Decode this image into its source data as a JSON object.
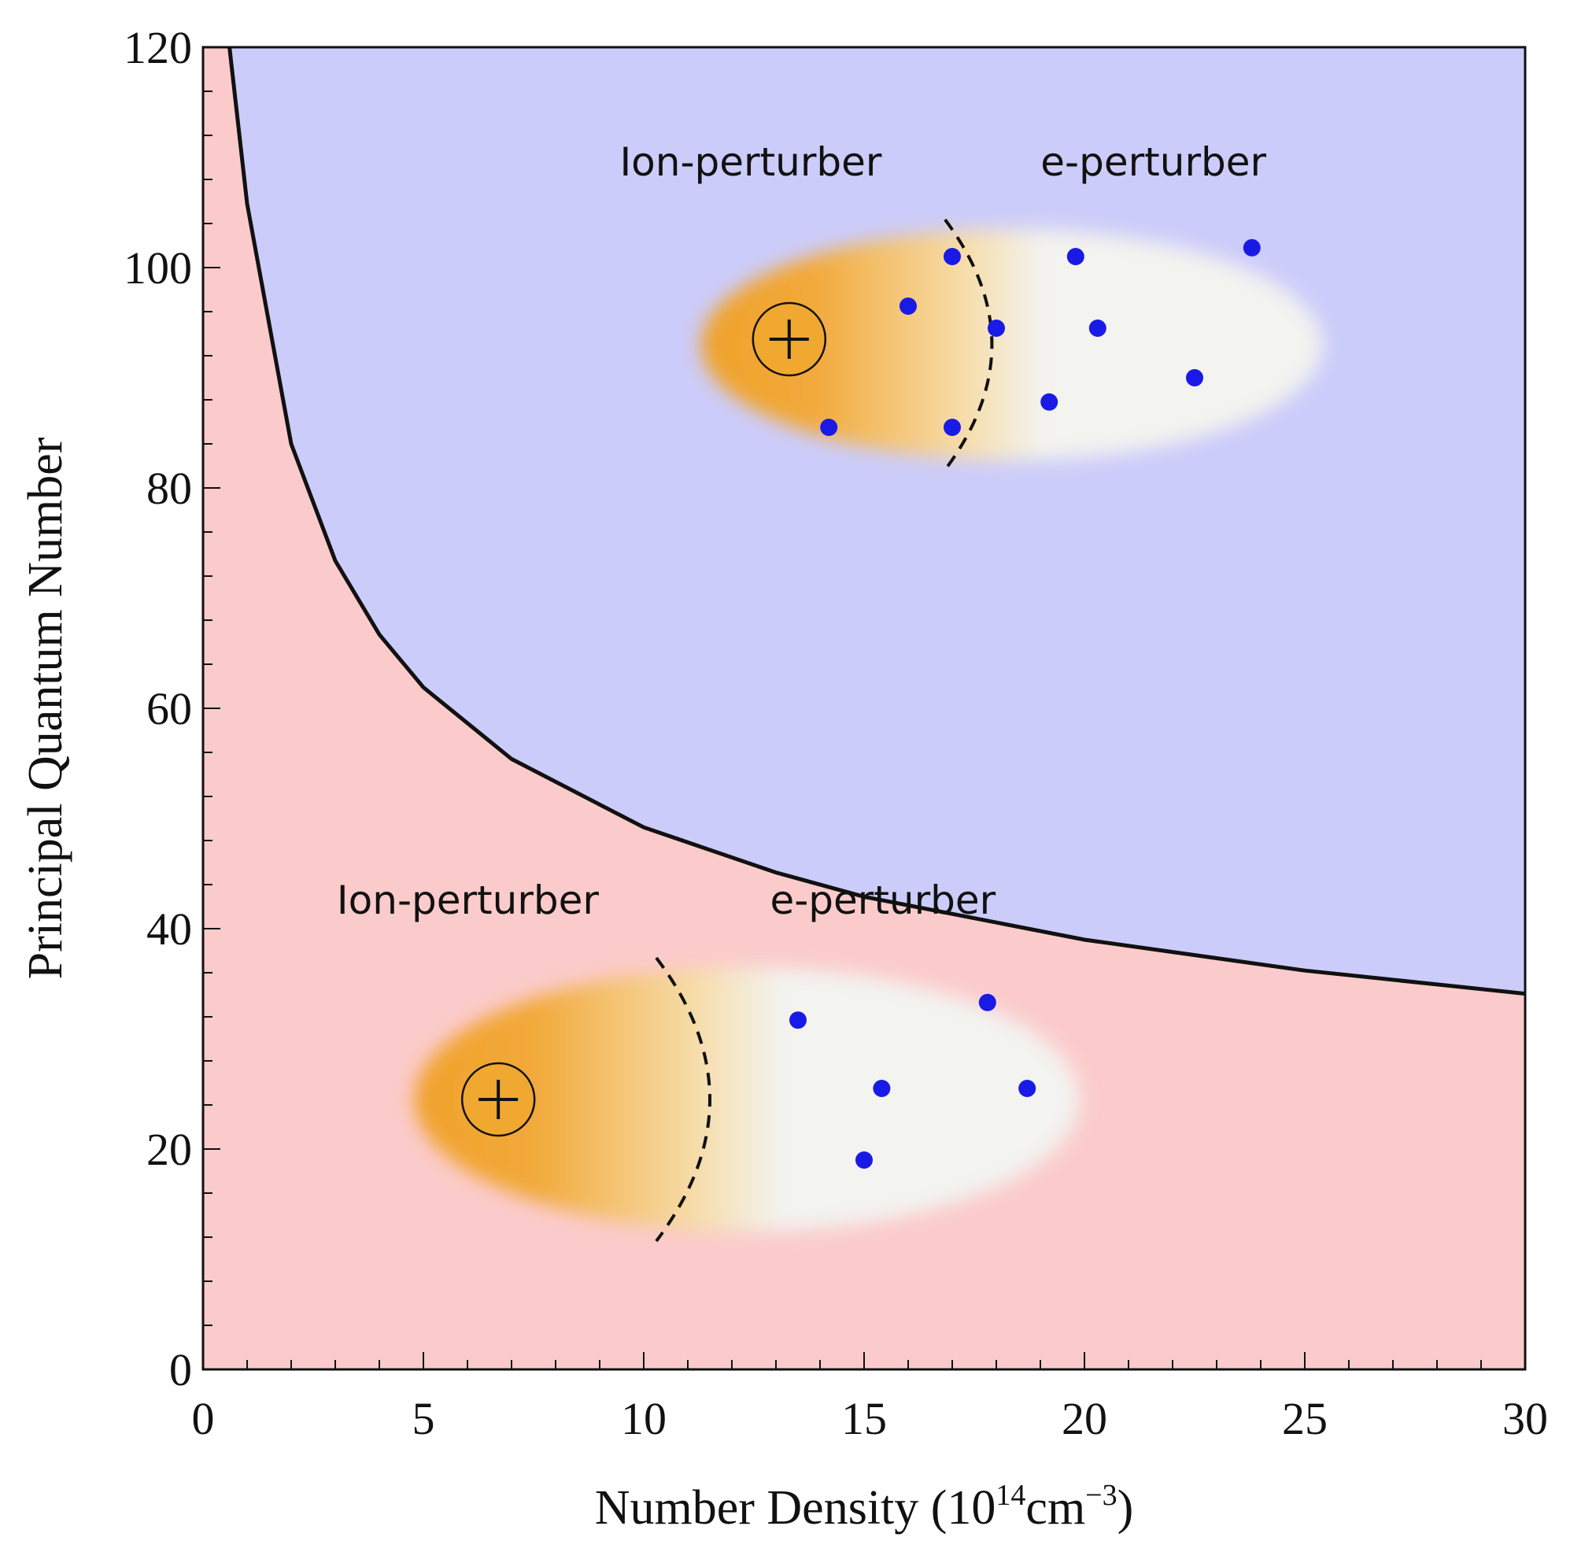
{
  "chart_data": {
    "type": "area",
    "title": "",
    "xlabel": "Number Density (10",
    "xlabel_sup": "14",
    "xlabel_unit": "cm",
    "xlabel_unit_sup": "−3",
    "xlabel_close": ")",
    "ylabel": "Principal Quantum Number",
    "xlim": [
      0,
      30
    ],
    "ylim": [
      0,
      120
    ],
    "x_ticks": [
      "0",
      "5",
      "10",
      "15",
      "20",
      "25",
      "30"
    ],
    "y_ticks": [
      "0",
      "20",
      "40",
      "60",
      "80",
      "100",
      "120"
    ],
    "grid": false,
    "colors": {
      "upper_region": "#ccccfa",
      "lower_region": "#fbcbcb",
      "boundary": "#111111",
      "ion_core": "#f0a830",
      "electron": "#1a1ae6"
    },
    "boundary_curve": {
      "x": [
        0.6,
        1,
        2,
        3,
        4,
        5,
        7,
        10,
        13,
        15,
        20,
        25,
        30
      ],
      "y": [
        120,
        105.8,
        84,
        73.4,
        66.7,
        61.9,
        55.4,
        49.2,
        45.1,
        42.9,
        39.0,
        36.2,
        34.1
      ]
    },
    "illustrations": [
      {
        "label_ion": "Ion-perturber",
        "label_electron": "e-perturber",
        "ion": {
          "x": 13.3,
          "y": 93.5
        },
        "ellipse": {
          "x0": 11.3,
          "x1": 25.4,
          "y0": 82.5,
          "y1": 103.5
        },
        "divider_x": 17.9,
        "electrons": [
          {
            "x": 16.0,
            "y": 96.5
          },
          {
            "x": 17.0,
            "y": 101.0
          },
          {
            "x": 18.0,
            "y": 94.5
          },
          {
            "x": 17.0,
            "y": 85.5
          },
          {
            "x": 14.2,
            "y": 85.5
          },
          {
            "x": 19.2,
            "y": 87.8
          },
          {
            "x": 19.8,
            "y": 101.0
          },
          {
            "x": 20.3,
            "y": 94.5
          },
          {
            "x": 22.5,
            "y": 90.0
          },
          {
            "x": 23.8,
            "y": 101.8
          }
        ]
      },
      {
        "label_ion": "Ion-perturber",
        "label_electron": "e-perturber",
        "ion": {
          "x": 6.7,
          "y": 24.5
        },
        "ellipse": {
          "x0": 4.8,
          "x1": 19.9,
          "y0": 12.5,
          "y1": 36.5
        },
        "divider_x": 11.5,
        "electrons": [
          {
            "x": 13.5,
            "y": 31.7
          },
          {
            "x": 17.8,
            "y": 33.3
          },
          {
            "x": 15.4,
            "y": 25.5
          },
          {
            "x": 18.7,
            "y": 25.5
          },
          {
            "x": 15.0,
            "y": 19.0
          }
        ]
      }
    ]
  }
}
